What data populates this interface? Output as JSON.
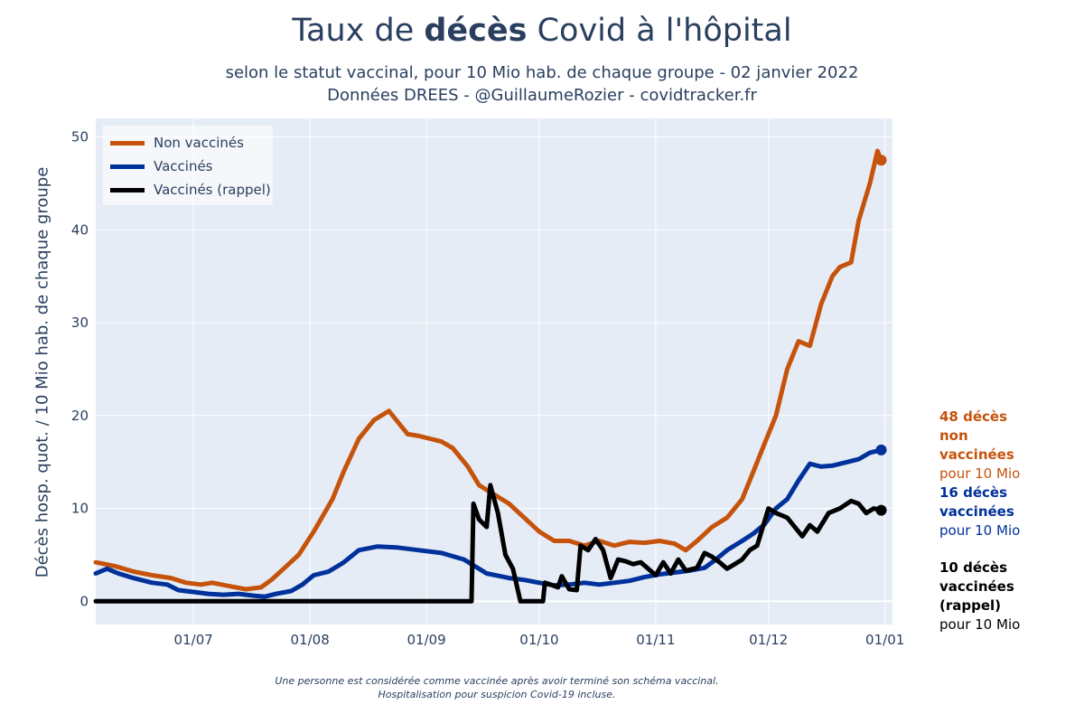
{
  "header": {
    "title_before": "Taux de ",
    "title_bold": "décès",
    "title_after": " Covid à l'hôpital",
    "subtitle_line1": "selon le statut vaccinal, pour 10 Mio hab. de chaque groupe - 02 janvier 2022",
    "subtitle_line2": "Données DREES - @GuillaumeRozier - covidtracker.fr"
  },
  "annotations": {
    "nonvax_bold": "48 décès non vaccinées",
    "nonvax_rest": "pour 10 Mio",
    "vax_bold": "16 décès vaccinées",
    "vax_rest": "pour 10 Mio",
    "booster_bold": "10 décès vaccinées (rappel)",
    "booster_rest": "pour 10 Mio"
  },
  "footnote": {
    "line1": "Une personne est considérée comme vaccinée après avoir terminé son schéma vaccinal.",
    "line2": "Hospitalisation pour suspicion Covid-19 incluse."
  },
  "chart_data": {
    "type": "line",
    "title": "Taux de décès Covid à l'hôpital",
    "xlabel": "",
    "ylabel": "Décès hosp. quot. / 10 Mio hab. de chaque groupe",
    "ylim": [
      -2.5,
      52
    ],
    "xlim_day": [
      0,
      212
    ],
    "x_ticks": [
      {
        "day": 26,
        "label": "01/07"
      },
      {
        "day": 57,
        "label": "01/08"
      },
      {
        "day": 88,
        "label": "01/09"
      },
      {
        "day": 118,
        "label": "01/10"
      },
      {
        "day": 149,
        "label": "01/11"
      },
      {
        "day": 179,
        "label": "01/12"
      },
      {
        "day": 210,
        "label": "01/01"
      }
    ],
    "y_ticks": [
      0,
      10,
      20,
      30,
      40,
      50
    ],
    "grid": true,
    "legend_position": "top-left",
    "series": [
      {
        "name": "Non vaccinés",
        "color": "#c6530c",
        "points": [
          [
            0,
            4.2
          ],
          [
            5,
            3.8
          ],
          [
            10,
            3.2
          ],
          [
            15,
            2.8
          ],
          [
            20,
            2.5
          ],
          [
            24,
            2.0
          ],
          [
            28,
            1.8
          ],
          [
            31,
            2.0
          ],
          [
            36,
            1.6
          ],
          [
            40,
            1.3
          ],
          [
            44,
            1.5
          ],
          [
            47,
            2.4
          ],
          [
            50,
            3.5
          ],
          [
            54,
            5.0
          ],
          [
            58,
            7.5
          ],
          [
            63,
            11
          ],
          [
            66,
            14
          ],
          [
            70,
            17.5
          ],
          [
            74,
            19.5
          ],
          [
            78,
            20.5
          ],
          [
            80,
            19.5
          ],
          [
            83,
            18.0
          ],
          [
            86,
            17.8
          ],
          [
            89,
            17.5
          ],
          [
            92,
            17.2
          ],
          [
            95,
            16.5
          ],
          [
            99,
            14.5
          ],
          [
            102,
            12.5
          ],
          [
            106,
            11.5
          ],
          [
            110,
            10.5
          ],
          [
            114,
            9.0
          ],
          [
            118,
            7.5
          ],
          [
            122,
            6.5
          ],
          [
            126,
            6.5
          ],
          [
            130,
            6.0
          ],
          [
            134,
            6.5
          ],
          [
            138,
            6.0
          ],
          [
            142,
            6.4
          ],
          [
            146,
            6.3
          ],
          [
            150,
            6.5
          ],
          [
            154,
            6.2
          ],
          [
            157,
            5.5
          ],
          [
            160,
            6.5
          ],
          [
            164,
            8.0
          ],
          [
            168,
            9.0
          ],
          [
            172,
            11.0
          ],
          [
            175,
            14.0
          ],
          [
            178,
            17.0
          ],
          [
            181,
            20.0
          ],
          [
            184,
            25.0
          ],
          [
            187,
            28.0
          ],
          [
            190,
            27.5
          ],
          [
            193,
            32.0
          ],
          [
            196,
            35.0
          ],
          [
            198,
            36.0
          ],
          [
            201,
            36.5
          ],
          [
            203,
            41.0
          ],
          [
            206,
            45.0
          ],
          [
            208,
            48.5
          ],
          [
            209,
            47.5
          ]
        ]
      },
      {
        "name": "Vaccinés",
        "color": "#00309a",
        "points": [
          [
            0,
            3.0
          ],
          [
            3,
            3.5
          ],
          [
            6,
            3.0
          ],
          [
            10,
            2.5
          ],
          [
            15,
            2.0
          ],
          [
            19,
            1.8
          ],
          [
            22,
            1.2
          ],
          [
            26,
            1.0
          ],
          [
            30,
            0.8
          ],
          [
            34,
            0.7
          ],
          [
            38,
            0.8
          ],
          [
            42,
            0.6
          ],
          [
            45,
            0.5
          ],
          [
            48,
            0.8
          ],
          [
            52,
            1.1
          ],
          [
            55,
            1.8
          ],
          [
            58,
            2.8
          ],
          [
            62,
            3.2
          ],
          [
            66,
            4.2
          ],
          [
            70,
            5.5
          ],
          [
            75,
            5.9
          ],
          [
            80,
            5.8
          ],
          [
            86,
            5.5
          ],
          [
            92,
            5.2
          ],
          [
            98,
            4.5
          ],
          [
            104,
            3.0
          ],
          [
            110,
            2.5
          ],
          [
            114,
            2.3
          ],
          [
            118,
            2.0
          ],
          [
            122,
            1.7
          ],
          [
            126,
            1.8
          ],
          [
            130,
            2.0
          ],
          [
            134,
            1.8
          ],
          [
            138,
            2.0
          ],
          [
            142,
            2.2
          ],
          [
            146,
            2.6
          ],
          [
            150,
            2.9
          ],
          [
            154,
            3.1
          ],
          [
            158,
            3.3
          ],
          [
            162,
            3.6
          ],
          [
            165,
            4.5
          ],
          [
            168,
            5.5
          ],
          [
            172,
            6.5
          ],
          [
            175,
            7.3
          ],
          [
            178,
            8.3
          ],
          [
            181,
            10.0
          ],
          [
            184,
            11.0
          ],
          [
            187,
            13.0
          ],
          [
            190,
            14.8
          ],
          [
            193,
            14.5
          ],
          [
            196,
            14.6
          ],
          [
            200,
            15.0
          ],
          [
            203,
            15.3
          ],
          [
            206,
            16.0
          ],
          [
            209,
            16.3
          ]
        ]
      },
      {
        "name": "Vaccinés (rappel)",
        "color": "#000000",
        "points": [
          [
            0,
            0
          ],
          [
            100,
            0
          ],
          [
            100.5,
            10.5
          ],
          [
            102,
            8.8
          ],
          [
            104,
            8.0
          ],
          [
            105,
            12.5
          ],
          [
            107,
            9.5
          ],
          [
            109,
            5.0
          ],
          [
            111,
            3.5
          ],
          [
            113,
            0
          ],
          [
            119,
            0
          ],
          [
            119.5,
            2.0
          ],
          [
            121,
            1.8
          ],
          [
            123,
            1.5
          ],
          [
            124,
            2.7
          ],
          [
            126,
            1.3
          ],
          [
            128,
            1.2
          ],
          [
            129,
            6.0
          ],
          [
            131,
            5.5
          ],
          [
            133,
            6.7
          ],
          [
            135,
            5.5
          ],
          [
            137,
            2.5
          ],
          [
            139,
            4.5
          ],
          [
            141,
            4.3
          ],
          [
            143,
            4.0
          ],
          [
            145,
            4.2
          ],
          [
            147,
            3.5
          ],
          [
            149,
            2.8
          ],
          [
            151,
            4.2
          ],
          [
            153,
            3.0
          ],
          [
            155,
            4.5
          ],
          [
            157,
            3.3
          ],
          [
            160,
            3.6
          ],
          [
            162,
            5.2
          ],
          [
            164,
            4.8
          ],
          [
            166,
            4.2
          ],
          [
            168,
            3.5
          ],
          [
            170,
            4.0
          ],
          [
            172,
            4.5
          ],
          [
            174,
            5.5
          ],
          [
            176,
            6.0
          ],
          [
            179,
            10.0
          ],
          [
            181,
            9.5
          ],
          [
            184,
            9.0
          ],
          [
            186,
            8.0
          ],
          [
            188,
            7.0
          ],
          [
            190,
            8.2
          ],
          [
            192,
            7.5
          ],
          [
            195,
            9.5
          ],
          [
            198,
            10.0
          ],
          [
            201,
            10.8
          ],
          [
            203,
            10.5
          ],
          [
            205,
            9.5
          ],
          [
            207,
            10.0
          ],
          [
            209,
            9.8
          ]
        ]
      }
    ]
  }
}
